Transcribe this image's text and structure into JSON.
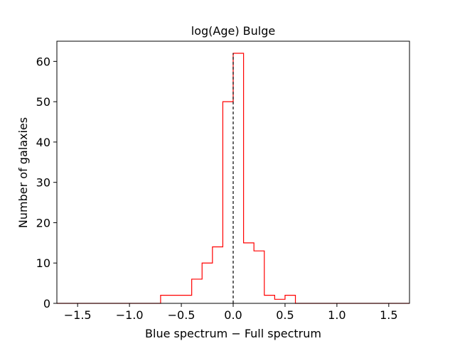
{
  "chart_data": {
    "type": "histogram",
    "title": "log(Age) Bulge",
    "xlabel": "Blue spectrum − Full spectrum",
    "ylabel": "Number of galaxies",
    "xlim": [
      -1.7,
      1.7
    ],
    "ylim": [
      0,
      65
    ],
    "xticks": [
      -1.5,
      -1.0,
      -0.5,
      0.0,
      0.5,
      1.0,
      1.5
    ],
    "xtick_labels": [
      "−1.5",
      "−1.0",
      "−0.5",
      "0.0",
      "0.5",
      "1.0",
      "1.5"
    ],
    "yticks": [
      0,
      10,
      20,
      30,
      40,
      50,
      60
    ],
    "ytick_labels": [
      "0",
      "10",
      "20",
      "30",
      "40",
      "50",
      "60"
    ],
    "bin_edges": [
      -1.7,
      -1.6,
      -1.5,
      -1.4,
      -1.3,
      -1.2,
      -1.1,
      -1.0,
      -0.9,
      -0.8,
      -0.7,
      -0.6,
      -0.5,
      -0.4,
      -0.3,
      -0.2,
      -0.1,
      0.0,
      0.1,
      0.2,
      0.3,
      0.4,
      0.5,
      0.6,
      0.7,
      0.8,
      0.9,
      1.0,
      1.1,
      1.2,
      1.3,
      1.4,
      1.5,
      1.6,
      1.7
    ],
    "counts": [
      0,
      0,
      0,
      0,
      0,
      0,
      0,
      0,
      0,
      0,
      2,
      2,
      2,
      6,
      10,
      14,
      50,
      62,
      15,
      13,
      2,
      1,
      2,
      0,
      0,
      0,
      0,
      0,
      0,
      0,
      0,
      0,
      0,
      0
    ],
    "reference_line_x": 0.0,
    "grid": false,
    "colors": {
      "histogram": "#ff0000",
      "reference_line": "#000000",
      "axes": "#000000"
    }
  }
}
